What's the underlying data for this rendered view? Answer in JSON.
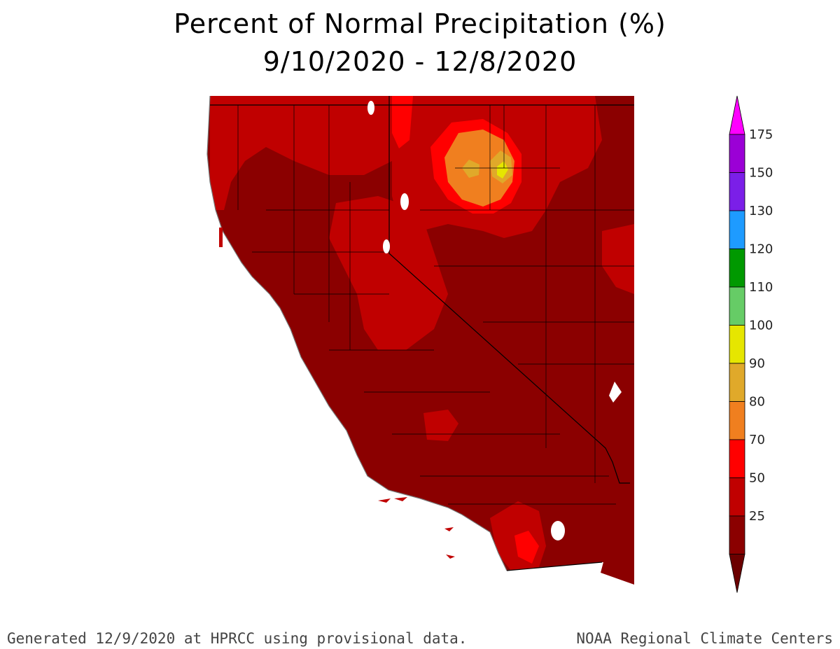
{
  "title": "Percent of Normal Precipitation (%)",
  "date_range": "9/10/2020 - 12/8/2020",
  "footer_left": "Generated 12/9/2020 at HPRCC using provisional data.",
  "footer_right": "NOAA Regional Climate Centers",
  "legend": {
    "bins": [
      {
        "label": "25",
        "color": "#8b0000"
      },
      {
        "label": "50",
        "color": "#c00000"
      },
      {
        "label": "70",
        "color": "#ff0000"
      },
      {
        "label": "80",
        "color": "#f07f1f"
      },
      {
        "label": "90",
        "color": "#e0a92a"
      },
      {
        "label": "100",
        "color": "#e6e600"
      },
      {
        "label": "110",
        "color": "#66cc66"
      },
      {
        "label": "120",
        "color": "#009900"
      },
      {
        "label": "130",
        "color": "#1e9bff"
      },
      {
        "label": "150",
        "color": "#7b1fe8"
      },
      {
        "label": "175",
        "color": "#9b00d6"
      }
    ],
    "top_color": "#ff00ff",
    "bottom_color": "#6b0000"
  },
  "map": {
    "region": "California and Nevada",
    "background_color": "#8b0000"
  }
}
